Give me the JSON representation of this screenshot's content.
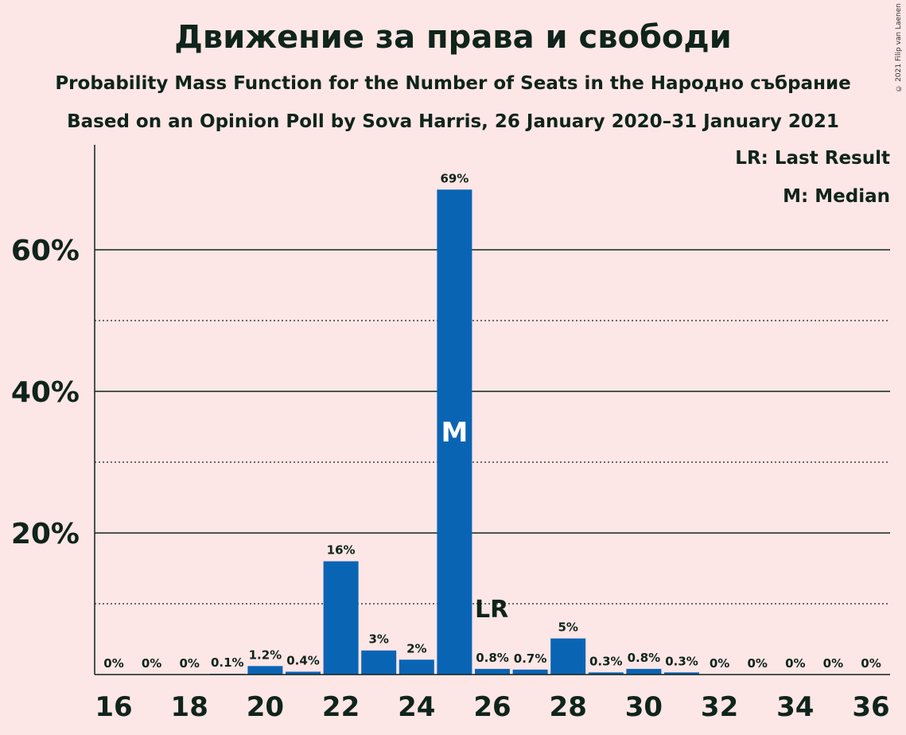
{
  "header": {
    "title": "Движение за права и свободи",
    "subtitle1": "Probability Mass Function for the Number of Seats in the Народно събрание",
    "subtitle2": "Based on an Opinion Poll by Sova Harris, 26 January 2020–31 January 2021",
    "copyright": "© 2021 Filip van Laenen"
  },
  "legend": {
    "last_result": "LR: Last Result",
    "median": "M: Median"
  },
  "colors": {
    "bar": "#0a64b4",
    "background": "#fde6e6",
    "text": "#0f241b"
  },
  "chart_data": {
    "type": "bar",
    "x": [
      16,
      17,
      18,
      19,
      20,
      21,
      22,
      23,
      24,
      25,
      26,
      27,
      28,
      29,
      30,
      31,
      32,
      33,
      34,
      35,
      36
    ],
    "values": [
      0,
      0,
      0,
      0.1,
      1.2,
      0.4,
      16,
      3.4,
      2.1,
      68.5,
      0.8,
      0.7,
      5.1,
      0.3,
      0.8,
      0.3,
      0,
      0,
      0,
      0,
      0
    ],
    "data_labels": [
      "0%",
      "0%",
      "0%",
      "0.1%",
      "1.2%",
      "0.4%",
      "16%",
      "3%",
      "2%",
      "69%",
      "0.8%",
      "0.7%",
      "5%",
      "0.3%",
      "0.8%",
      "0.3%",
      "0%",
      "0%",
      "0%",
      "0%",
      "0%"
    ],
    "x_ticks": [
      16,
      18,
      20,
      22,
      24,
      26,
      28,
      30,
      32,
      34,
      36
    ],
    "y_ticks": [
      20,
      40,
      60
    ],
    "y_tick_labels": [
      "20%",
      "40%",
      "60%"
    ],
    "y_minor_gridlines": [
      10,
      30,
      50
    ],
    "ylim": [
      0,
      75
    ],
    "median_seat": 25,
    "median_label": "M",
    "last_result_seat": 26,
    "last_result_label": "LR",
    "legend_position": "top-right",
    "grid": true
  }
}
